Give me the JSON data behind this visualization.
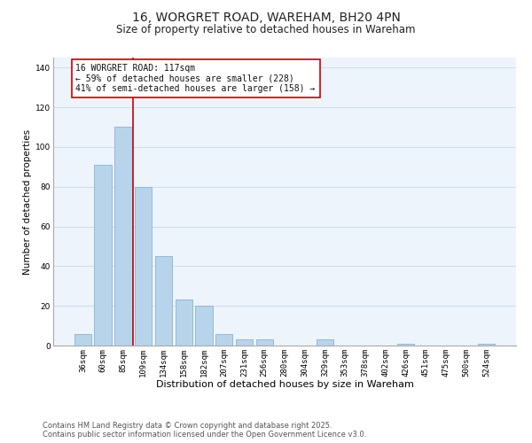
{
  "title": "16, WORGRET ROAD, WAREHAM, BH20 4PN",
  "subtitle": "Size of property relative to detached houses in Wareham",
  "xlabel": "Distribution of detached houses by size in Wareham",
  "ylabel": "Number of detached properties",
  "bar_labels": [
    "36sqm",
    "60sqm",
    "85sqm",
    "109sqm",
    "134sqm",
    "158sqm",
    "182sqm",
    "207sqm",
    "231sqm",
    "256sqm",
    "280sqm",
    "304sqm",
    "329sqm",
    "353sqm",
    "378sqm",
    "402sqm",
    "426sqm",
    "451sqm",
    "475sqm",
    "500sqm",
    "524sqm"
  ],
  "bar_values": [
    6,
    91,
    110,
    80,
    45,
    23,
    20,
    6,
    3,
    3,
    0,
    0,
    3,
    0,
    0,
    0,
    1,
    0,
    0,
    0,
    1
  ],
  "bar_color": "#b8d4ea",
  "bar_edge_color": "#8ab4d4",
  "vline_color": "#cc0000",
  "annotation_text": "16 WORGRET ROAD: 117sqm\n← 59% of detached houses are smaller (228)\n41% of semi-detached houses are larger (158) →",
  "annotation_box_edge": "#cc0000",
  "ylim": [
    0,
    145
  ],
  "yticks": [
    0,
    20,
    40,
    60,
    80,
    100,
    120,
    140
  ],
  "grid_color": "#ccdded",
  "background_color": "#eef4fb",
  "footer_line1": "Contains HM Land Registry data © Crown copyright and database right 2025.",
  "footer_line2": "Contains public sector information licensed under the Open Government Licence v3.0.",
  "title_fontsize": 10,
  "subtitle_fontsize": 8.5,
  "xlabel_fontsize": 8,
  "ylabel_fontsize": 7.5,
  "tick_fontsize": 6.5,
  "annotation_fontsize": 7,
  "footer_fontsize": 6
}
